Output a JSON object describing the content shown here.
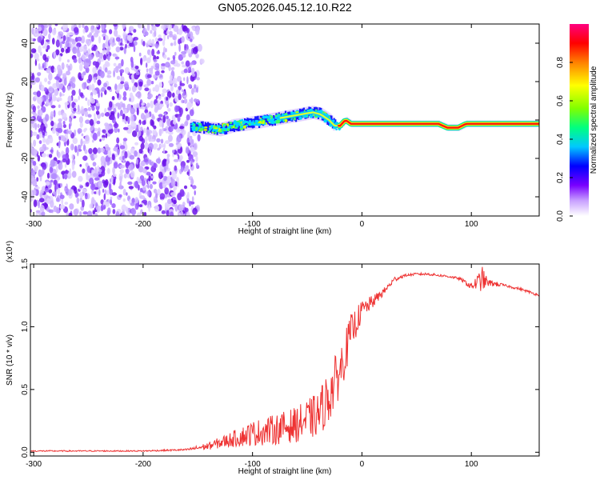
{
  "title": "GN05.2026.045.12.10.R22",
  "chart_data": [
    {
      "type": "heatmap",
      "xlabel": "Height of straight line (km)",
      "ylabel": "Frequency (Hz)",
      "xlim": [
        -303,
        162
      ],
      "ylim": [
        -50,
        50
      ],
      "x_ticks": [
        "-300",
        "-200",
        "-100",
        "0",
        "100"
      ],
      "x_tick_values": [
        -300,
        -200,
        -100,
        0,
        100
      ],
      "y_ticks": [
        "-40",
        "-20",
        "0",
        "20",
        "40"
      ],
      "y_tick_values": [
        -40,
        -20,
        0,
        20,
        40
      ],
      "colorbar": {
        "label": "Normalized spectral amplitude",
        "ticks": [
          "0.0",
          "0.2",
          "0.4",
          "0.6",
          "0.8"
        ],
        "tick_values": [
          0.0,
          0.2,
          0.4,
          0.6,
          0.8
        ],
        "range": [
          0,
          1
        ],
        "colors": [
          "#ffffff",
          "#c8a0ff",
          "#7800ff",
          "#0000ff",
          "#00c8ff",
          "#00ff80",
          "#80ff00",
          "#ffff00",
          "#ff8000",
          "#ff0000",
          "#ff0080"
        ]
      },
      "noise_region_x": [
        -303,
        -155
      ],
      "ridge": [
        {
          "x": -157,
          "y": -3
        },
        {
          "x": -145,
          "y": -4
        },
        {
          "x": -130,
          "y": -5
        },
        {
          "x": -118,
          "y": -3
        },
        {
          "x": -105,
          "y": -2
        },
        {
          "x": -95,
          "y": -1
        },
        {
          "x": -85,
          "y": 0
        },
        {
          "x": -75,
          "y": 1
        },
        {
          "x": -65,
          "y": 2
        },
        {
          "x": -55,
          "y": 3
        },
        {
          "x": -45,
          "y": 4
        },
        {
          "x": -38,
          "y": 3
        },
        {
          "x": -30,
          "y": 0
        },
        {
          "x": -25,
          "y": -3
        },
        {
          "x": -20,
          "y": -3
        },
        {
          "x": -15,
          "y": 0
        },
        {
          "x": -10,
          "y": -2
        },
        {
          "x": 0,
          "y": -2
        },
        {
          "x": 20,
          "y": -2
        },
        {
          "x": 50,
          "y": -2
        },
        {
          "x": 70,
          "y": -2
        },
        {
          "x": 78,
          "y": -4
        },
        {
          "x": 88,
          "y": -4
        },
        {
          "x": 95,
          "y": -2
        },
        {
          "x": 130,
          "y": -2
        },
        {
          "x": 162,
          "y": -2
        }
      ]
    },
    {
      "type": "line",
      "xlabel": "Height of straight line (km)",
      "ylabel": "SNR (10 * v/v)",
      "y_multiplier": "(x10⁴)",
      "xlim": [
        -303,
        162
      ],
      "ylim": [
        -0.03,
        1.5
      ],
      "x_ticks": [
        "-300",
        "-200",
        "-100",
        "0",
        "100"
      ],
      "x_tick_values": [
        -300,
        -200,
        -100,
        0,
        100
      ],
      "y_ticks": [
        "0.0",
        "0.5",
        "1.0",
        "1.5"
      ],
      "y_tick_values": [
        0.0,
        0.5,
        1.0,
        1.5
      ],
      "color": "#ee3333",
      "series": [
        {
          "x": [
            -303,
            -250,
            -200,
            -160,
            -140,
            -120,
            -100,
            -80,
            -60,
            -40,
            -30,
            -20,
            -10,
            0,
            10,
            20,
            30,
            40,
            50,
            60,
            70,
            80,
            90,
            100,
            105,
            110,
            115,
            130,
            145,
            162
          ],
          "y": [
            0.01,
            0.01,
            0.01,
            0.02,
            0.05,
            0.1,
            0.15,
            0.18,
            0.22,
            0.3,
            0.45,
            0.65,
            0.95,
            1.13,
            1.2,
            1.28,
            1.38,
            1.41,
            1.42,
            1.42,
            1.41,
            1.4,
            1.38,
            1.32,
            1.35,
            1.38,
            1.35,
            1.33,
            1.3,
            1.25
          ],
          "noise": [
            0.005,
            0.005,
            0.005,
            0.008,
            0.03,
            0.06,
            0.1,
            0.12,
            0.14,
            0.18,
            0.22,
            0.2,
            0.15,
            0.08,
            0.05,
            0.03,
            0.02,
            0.01,
            0.01,
            0.01,
            0.01,
            0.01,
            0.01,
            0.03,
            0.06,
            0.1,
            0.03,
            0.01,
            0.01,
            0.01
          ]
        }
      ]
    }
  ]
}
